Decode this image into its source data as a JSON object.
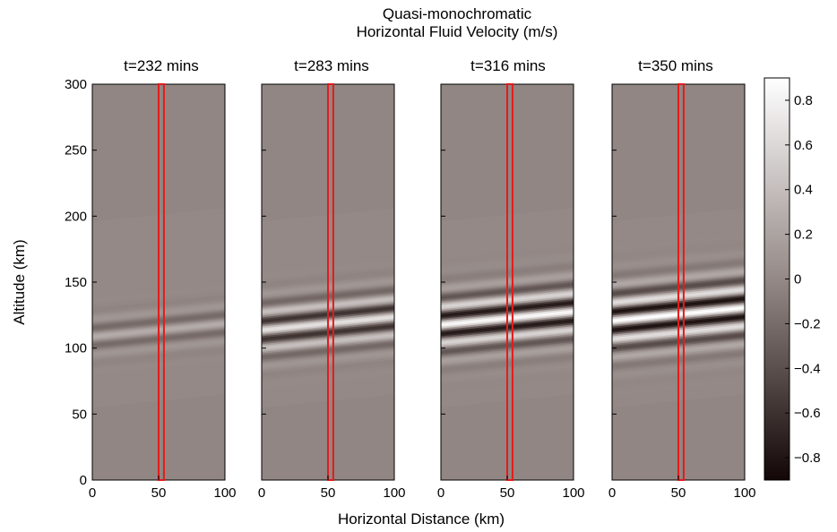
{
  "figure": {
    "title_line1": "Quasi-monochromatic",
    "title_line2": "Horizontal Fluid Velocity (m/s)",
    "xlabel": "Horizontal Distance (km)",
    "ylabel": "Altitude (km)"
  },
  "chart_data": {
    "type": "heatmap",
    "xlim": [
      0,
      100
    ],
    "ylim": [
      0,
      300
    ],
    "x_ticks": [
      "0",
      "50",
      "100"
    ],
    "y_ticks": [
      "0",
      "50",
      "100",
      "150",
      "200",
      "250",
      "300"
    ],
    "colorbar": {
      "range": [
        -0.9,
        0.9
      ],
      "ticks": [
        "0.8",
        "0.6",
        "0.4",
        "0.2",
        "0",
        "−0.2",
        "−0.4",
        "−0.6",
        "−0.8"
      ],
      "tick_values": [
        0.8,
        0.6,
        0.4,
        0.2,
        0,
        -0.2,
        -0.4,
        -0.6,
        -0.8
      ],
      "colormap": "gray-brown (dark = negative, white = positive)"
    },
    "highlight_column": {
      "x_center": 52,
      "width": 4,
      "color": "#e51b1b"
    },
    "panels": [
      {
        "title": "t=232 mins",
        "amplitude": 0.3,
        "wave_center_alt": 113,
        "wave_width_alt": 14
      },
      {
        "title": "t=283 mins",
        "amplitude": 0.75,
        "wave_center_alt": 118,
        "wave_width_alt": 20
      },
      {
        "title": "t=316 mins",
        "amplitude": 0.95,
        "wave_center_alt": 122,
        "wave_width_alt": 22
      },
      {
        "title": "t=350 mins",
        "amplitude": 1.0,
        "wave_center_alt": 125,
        "wave_width_alt": 24
      }
    ]
  }
}
